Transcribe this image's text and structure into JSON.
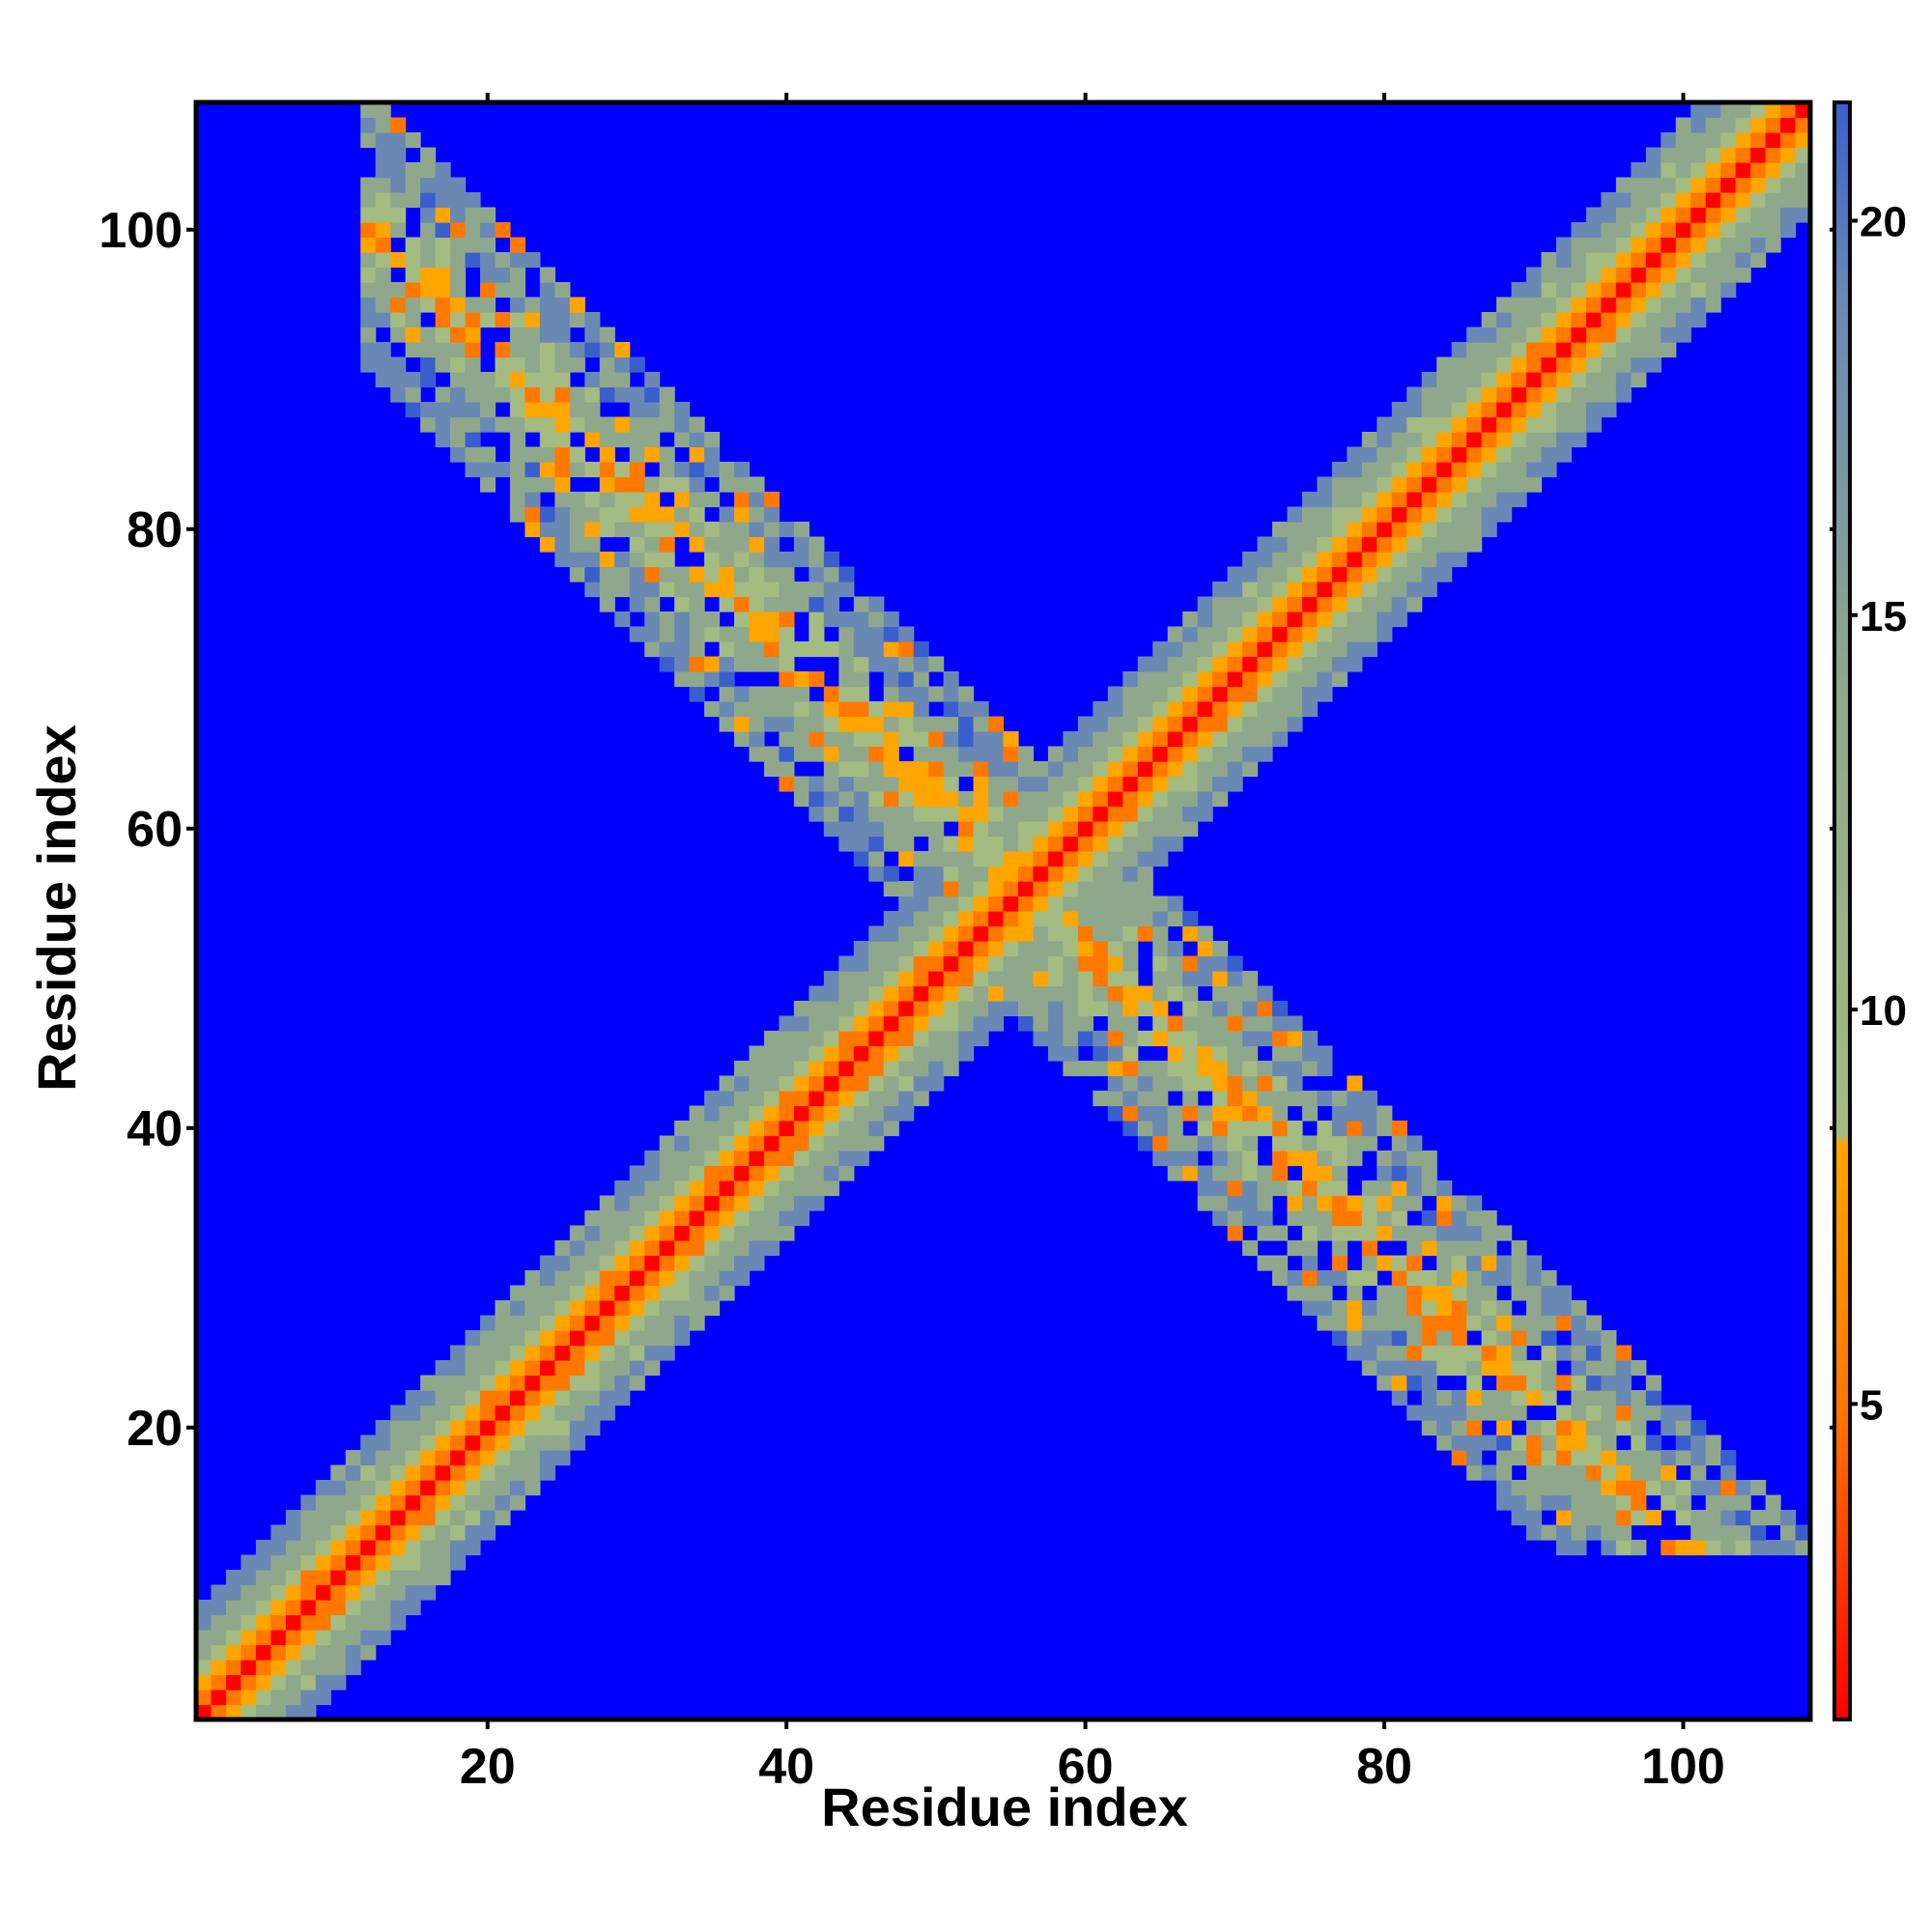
{
  "chart_data": {
    "type": "heatmap",
    "title": "",
    "xlabel": "Residue index",
    "ylabel": "Residue index",
    "n_residues": 108,
    "xlim": [
      1,
      108
    ],
    "ylim": [
      1,
      108
    ],
    "x_ticks": [
      20,
      40,
      60,
      80,
      100
    ],
    "y_ticks": [
      20,
      40,
      60,
      80,
      100
    ],
    "colorbar": {
      "range": [
        1,
        21.5
      ],
      "ticks": [
        5,
        10,
        15,
        20
      ],
      "stops": [
        {
          "value": 1,
          "color": "#ff0000"
        },
        {
          "value": 5,
          "color": "#ff7800"
        },
        {
          "value": 8.3,
          "color": "#ffa500"
        },
        {
          "value": 8.4,
          "color": "#a4bb82"
        },
        {
          "value": 14,
          "color": "#8fa88c"
        },
        {
          "value": 19,
          "color": "#6a88b4"
        },
        {
          "value": 21.5,
          "color": "#3a5fcd"
        }
      ],
      "background_color": "#0000ff"
    },
    "features": {
      "main_diagonal": {
        "from": [
          1,
          1
        ],
        "to": [
          108,
          108
        ],
        "band_halfwidth_residues": 7
      },
      "anti_diagonal_contacts": [
        {
          "x_range": [
            12,
            55
          ],
          "y_range": [
            100,
            57
          ],
          "description_only": false
        },
        {
          "x_range": [
            57,
            101
          ],
          "y_range": [
            53,
            12
          ],
          "description_only": false
        }
      ]
    }
  }
}
